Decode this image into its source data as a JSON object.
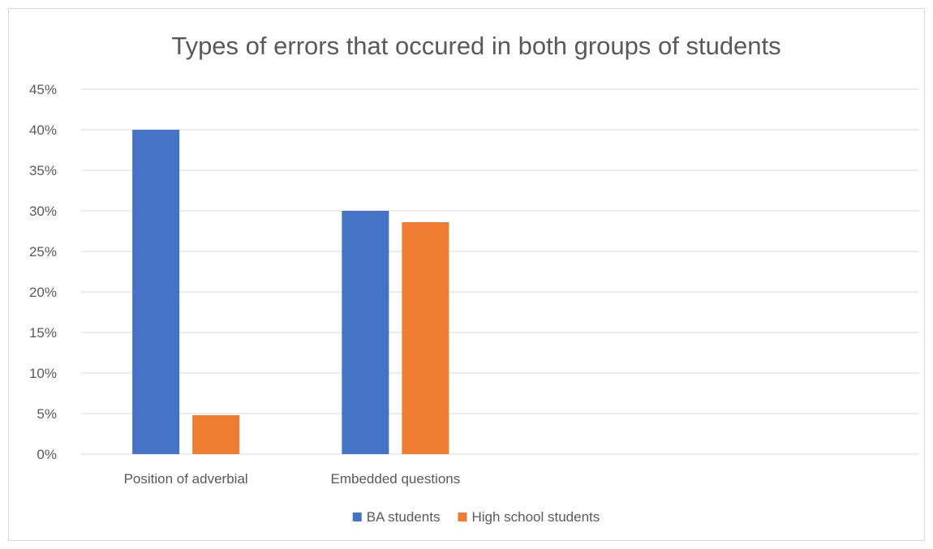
{
  "chart_data": {
    "type": "bar",
    "title": "Types of errors that occured in both groups of students",
    "xlabel": "",
    "ylabel": "",
    "categories": [
      "Position of adverbial",
      "Embedded questions",
      "",
      ""
    ],
    "series": [
      {
        "name": "BA students",
        "values": [
          40,
          30,
          null,
          null
        ],
        "color": "#4472C4"
      },
      {
        "name": "High school students",
        "values": [
          4.8,
          28.6,
          null,
          null
        ],
        "color": "#ED7D31"
      }
    ],
    "ylim": [
      0,
      45
    ],
    "y_ticks": [
      0,
      5,
      10,
      15,
      20,
      25,
      30,
      35,
      40,
      45
    ],
    "y_tick_labels": [
      "0%",
      "5%",
      "10%",
      "15%",
      "20%",
      "25%",
      "30%",
      "35%",
      "40%",
      "45%"
    ],
    "grid": true,
    "gridline_color": "#d9d9d9",
    "legend_position": "bottom"
  }
}
